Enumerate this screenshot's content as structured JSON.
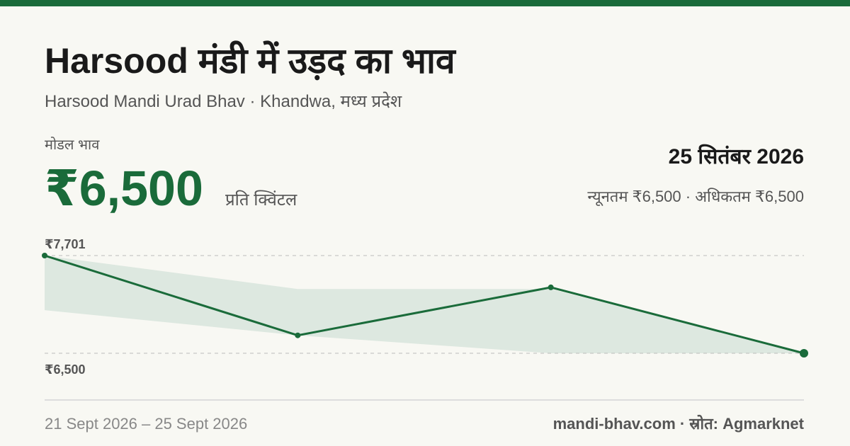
{
  "header": {
    "title": "Harsood मंडी में उड़द का भाव",
    "subtitle": "Harsood Mandi Urad Bhav · Khandwa, मध्य प्रदेश"
  },
  "price": {
    "label": "मोडल भाव",
    "value": "₹6,500",
    "unit": "प्रति क्विंटल",
    "date": "25 सितंबर 2026",
    "range": "न्यूनतम ₹6,500 · अधिकतम ₹6,500"
  },
  "chart_data": {
    "type": "line",
    "categories": [
      null,
      null,
      null,
      null
    ],
    "values": [
      7701,
      6720,
      7310,
      6500
    ],
    "color": "#1a6b3a",
    "band": {
      "low": [
        7030,
        6720,
        6500,
        6500
      ],
      "high": [
        7701,
        7290,
        7290,
        6500
      ],
      "color": "#dde8e0"
    },
    "ylim": [
      6500,
      7701
    ],
    "yticks": [
      {
        "value": 7701,
        "label": "₹7,701"
      },
      {
        "value": 6500,
        "label": "₹6,500"
      }
    ],
    "grid": true
  },
  "footer": {
    "dates": "21 Sept 2026 – 25 Sept 2026",
    "source": "mandi-bhav.com · स्रोत: Agmarknet"
  }
}
